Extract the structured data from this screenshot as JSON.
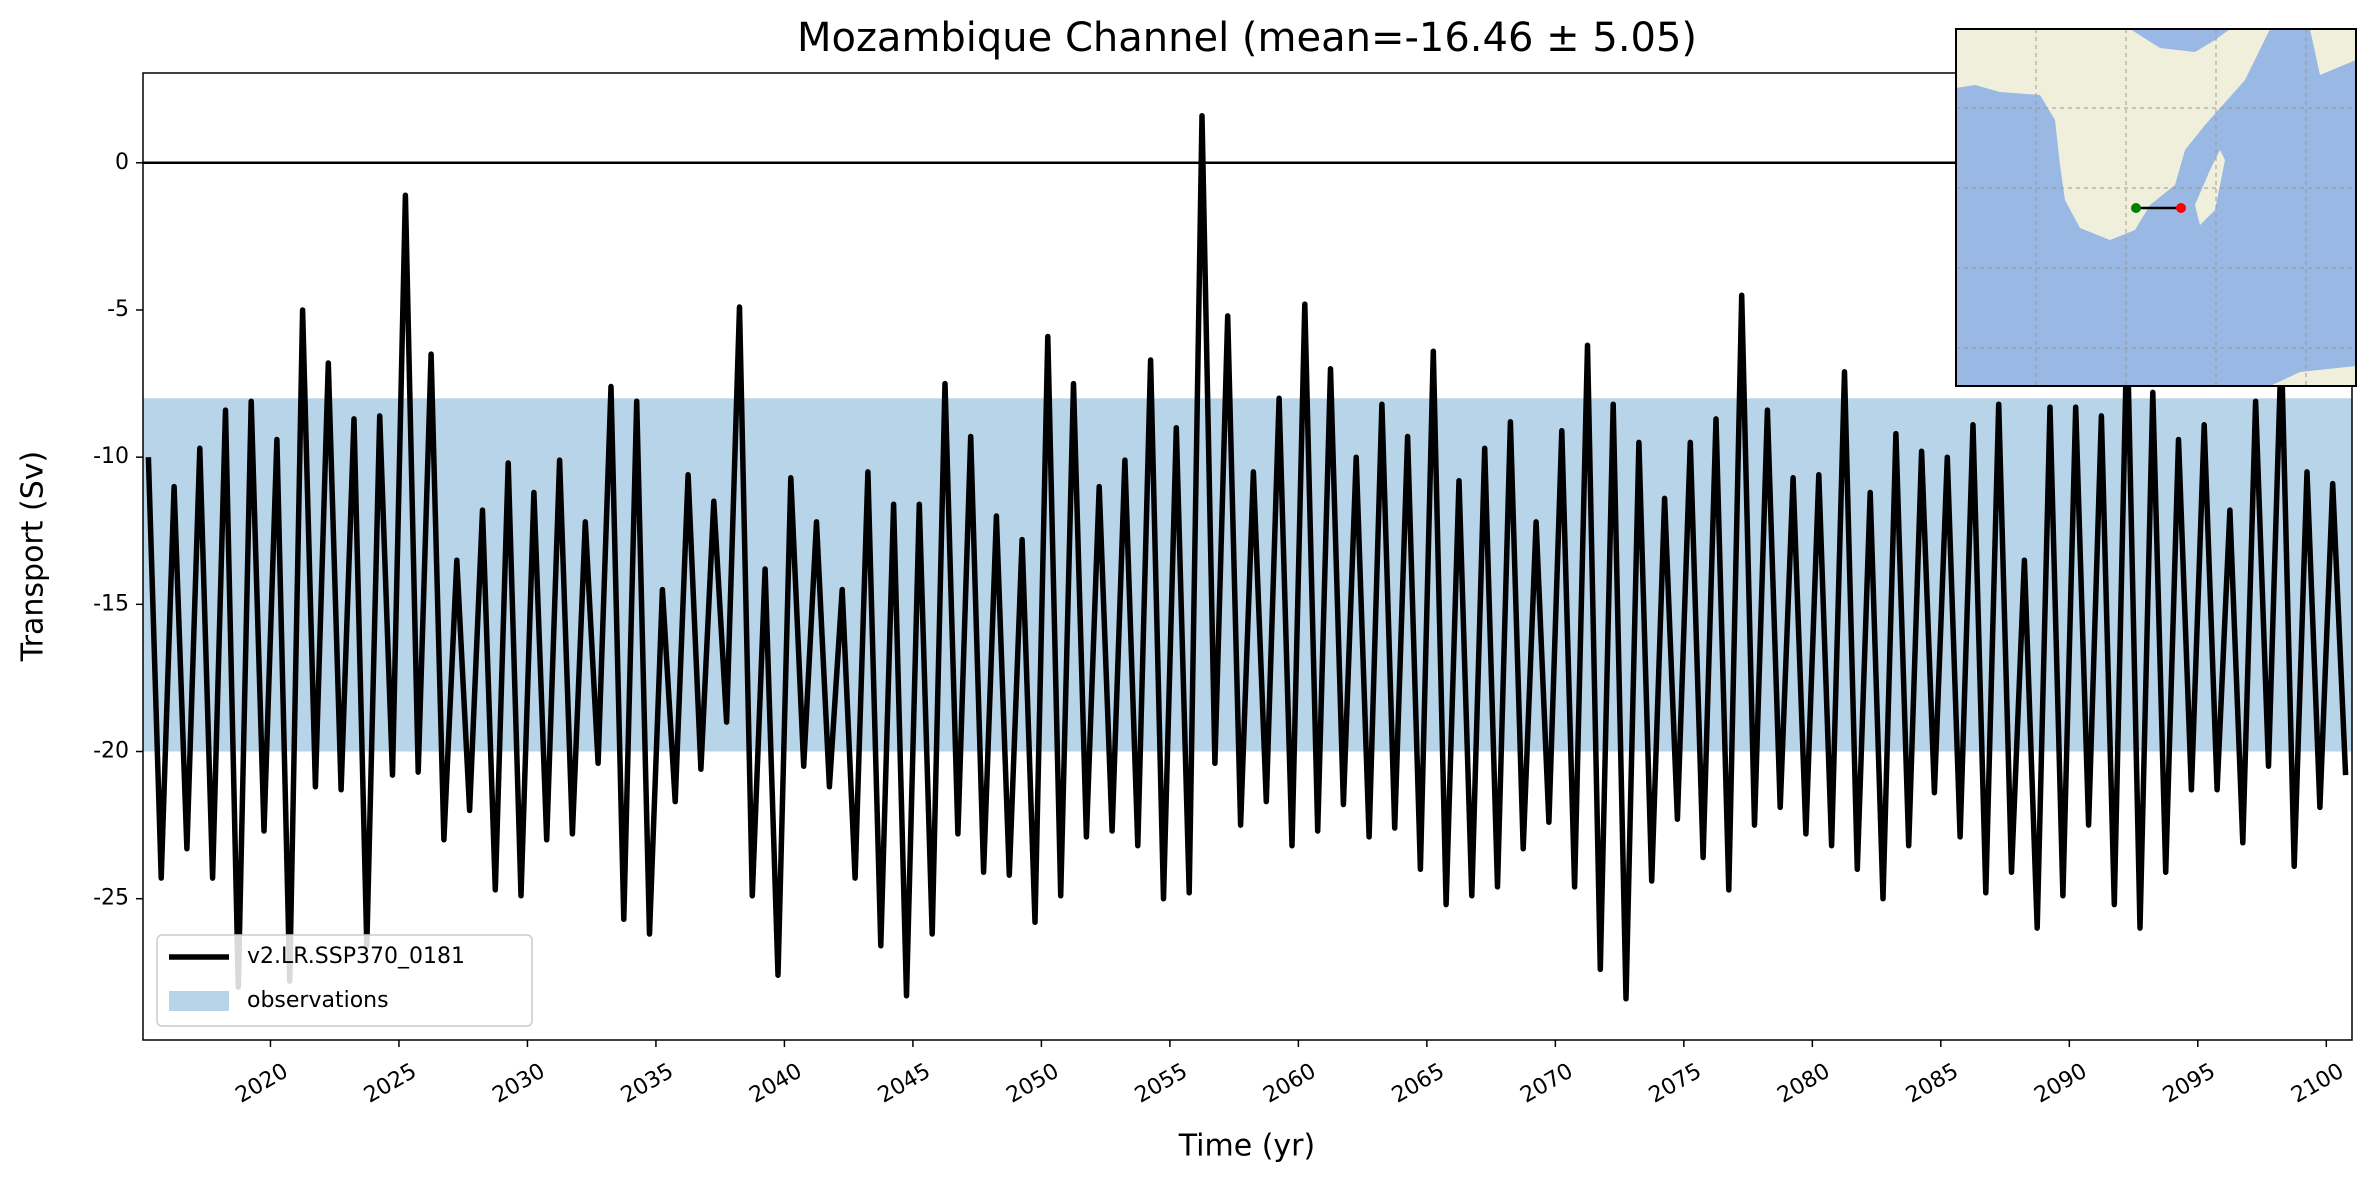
{
  "chart_data": {
    "type": "line",
    "title": "Mozambique Channel (mean=-16.46 ± 5.05)",
    "xlabel": "Time (yr)",
    "ylabel": "Transport (Sv)",
    "x": [
      2015.25,
      2015.75,
      2016.25,
      2016.75,
      2017.25,
      2017.75,
      2018.25,
      2018.75,
      2019.25,
      2019.75,
      2020.25,
      2020.75,
      2021.25,
      2021.75,
      2022.25,
      2022.75,
      2023.25,
      2023.75,
      2024.25,
      2024.75,
      2025.25,
      2025.75,
      2026.25,
      2026.75,
      2027.25,
      2027.75,
      2028.25,
      2028.75,
      2029.25,
      2029.75,
      2030.25,
      2030.75,
      2031.25,
      2031.75,
      2032.25,
      2032.75,
      2033.25,
      2033.75,
      2034.25,
      2034.75,
      2035.25,
      2035.75,
      2036.25,
      2036.75,
      2037.25,
      2037.75,
      2038.25,
      2038.75,
      2039.25,
      2039.75,
      2040.25,
      2040.75,
      2041.25,
      2041.75,
      2042.25,
      2042.75,
      2043.25,
      2043.75,
      2044.25,
      2044.75,
      2045.25,
      2045.75,
      2046.25,
      2046.75,
      2047.25,
      2047.75,
      2048.25,
      2048.75,
      2049.25,
      2049.75,
      2050.25,
      2050.75,
      2051.25,
      2051.75,
      2052.25,
      2052.75,
      2053.25,
      2053.75,
      2054.25,
      2054.75,
      2055.25,
      2055.75,
      2056.25,
      2056.75,
      2057.25,
      2057.75,
      2058.25,
      2058.75,
      2059.25,
      2059.75,
      2060.25,
      2060.75,
      2061.25,
      2061.75,
      2062.25,
      2062.75,
      2063.25,
      2063.75,
      2064.25,
      2064.75,
      2065.25,
      2065.75,
      2066.25,
      2066.75,
      2067.25,
      2067.75,
      2068.25,
      2068.75,
      2069.25,
      2069.75,
      2070.25,
      2070.75,
      2071.25,
      2071.75,
      2072.25,
      2072.75,
      2073.25,
      2073.75,
      2074.25,
      2074.75,
      2075.25,
      2075.75,
      2076.25,
      2076.75,
      2077.25,
      2077.75,
      2078.25,
      2078.75,
      2079.25,
      2079.75,
      2080.25,
      2080.75,
      2081.25,
      2081.75,
      2082.25,
      2082.75,
      2083.25,
      2083.75,
      2084.25,
      2084.75,
      2085.25,
      2085.75,
      2086.25,
      2086.75,
      2087.25,
      2087.75,
      2088.25,
      2088.75,
      2089.25,
      2089.75,
      2090.25,
      2090.75,
      2091.25,
      2091.75,
      2092.25,
      2092.75,
      2093.25,
      2093.75,
      2094.25,
      2094.75,
      2095.25,
      2095.75,
      2096.25,
      2096.75,
      2097.25,
      2097.75,
      2098.25,
      2098.75,
      2099.25,
      2099.75,
      2100.25,
      2100.75
    ],
    "series": [
      {
        "name": "v2.LR.SSP370_0181",
        "color": "#000000",
        "values": [
          -10,
          -24.3,
          -11,
          -23.3,
          -9.7,
          -24.3,
          -8.4,
          -28,
          -8.1,
          -22.7,
          -9.4,
          -27.8,
          -5,
          -21.2,
          -6.8,
          -21.3,
          -8.7,
          -26.6,
          -8.6,
          -20.8,
          -1.1,
          -20.7,
          -6.5,
          -23,
          -13.5,
          -22,
          -11.8,
          -24.7,
          -10.2,
          -24.9,
          -11.2,
          -23,
          -10.1,
          -22.8,
          -12.2,
          -20.4,
          -7.6,
          -25.7,
          -8.1,
          -26.2,
          -14.5,
          -21.7,
          -10.6,
          -20.6,
          -11.5,
          -19,
          -4.9,
          -24.9,
          -13.8,
          -27.6,
          -10.7,
          -20.5,
          -12.2,
          -21.2,
          -14.5,
          -24.3,
          -10.5,
          -26.6,
          -11.6,
          -28.3,
          -11.6,
          -26.2,
          -7.5,
          -22.8,
          -9.3,
          -24.1,
          -12,
          -24.2,
          -12.8,
          -25.8,
          -5.9,
          -24.9,
          -7.5,
          -22.9,
          -11,
          -22.7,
          -10.1,
          -23.2,
          -6.7,
          -25,
          -9,
          -24.8,
          1.6,
          -20.4,
          -5.2,
          -22.5,
          -10.5,
          -21.7,
          -8,
          -23.2,
          -4.8,
          -22.7,
          -7,
          -21.8,
          -10,
          -22.9,
          -8.2,
          -22.6,
          -9.3,
          -24,
          -6.4,
          -25.2,
          -10.8,
          -24.9,
          -9.7,
          -24.6,
          -8.8,
          -23.3,
          -12.2,
          -22.4,
          -9.1,
          -24.6,
          -6.2,
          -27.4,
          -8.2,
          -28.4,
          -9.5,
          -24.4,
          -11.4,
          -22.3,
          -9.5,
          -23.6,
          -8.7,
          -24.7,
          -4.5,
          -22.5,
          -8.4,
          -21.9,
          -10.7,
          -22.8,
          -10.6,
          -23.2,
          -7.1,
          -24,
          -11.2,
          -25,
          -9.2,
          -23.2,
          -9.8,
          -21.4,
          -10,
          -22.9,
          -8.9,
          -24.8,
          -8.2,
          -24.1,
          -13.5,
          -26,
          -8.3,
          -24.9,
          -8.3,
          -22.5,
          -8.6,
          -25.2,
          -5.5,
          -26,
          -7.8,
          -24.1,
          -9.4,
          -21.3,
          -8.9,
          -21.3,
          -11.8,
          -23.1,
          -8.1,
          -20.5,
          -6.2,
          -23.9,
          -10.5,
          -21.9,
          -10.9,
          -20.8
        ]
      }
    ],
    "band": {
      "name": "observations",
      "color": "#b8d4e9",
      "range": [
        -20,
        -8
      ]
    },
    "hline": 0,
    "xlim": [
      2015.04,
      2101.0
    ],
    "ylim": [
      -29.8,
      3.05
    ],
    "xticks": [
      2020,
      2025,
      2030,
      2035,
      2040,
      2045,
      2050,
      2055,
      2060,
      2065,
      2070,
      2075,
      2080,
      2085,
      2090,
      2095,
      2100
    ],
    "yticks": [
      0,
      -5,
      -10,
      -15,
      -20,
      -25
    ],
    "legend": "lower left"
  }
}
